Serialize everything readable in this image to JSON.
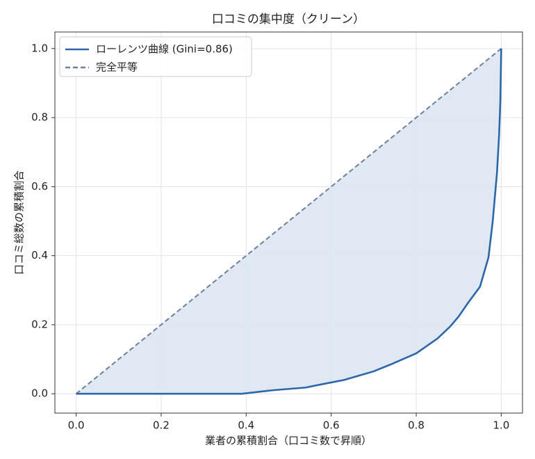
{
  "chart_data": {
    "type": "line",
    "title": "口コミの集中度（クリーン）",
    "xlabel": "業者の累積割合（口コミ数で昇順）",
    "ylabel": "口コミ総数の累積割合",
    "xlim": [
      -0.05,
      1.05
    ],
    "ylim": [
      -0.056,
      1.048
    ],
    "xticks": [
      {
        "value": 0,
        "label": "0.0"
      },
      0.2,
      0.4,
      0.6,
      0.8,
      {
        "value": 1,
        "label": "1.0"
      }
    ],
    "yticks": [
      {
        "value": 0,
        "label": "0.0"
      },
      0.2,
      0.4,
      0.6,
      0.8,
      {
        "value": 1,
        "label": "1.0"
      }
    ],
    "grid": true,
    "legend": "upper left",
    "fill_between": "#dce6f2",
    "series": [
      {
        "name": "ローレンツ曲線 (Gini=0.86)",
        "color": "#2c66a8",
        "dash": false,
        "x": [
          0,
          0.39,
          0.46,
          0.54,
          0.58,
          0.63,
          0.7,
          0.74,
          0.8,
          0.85,
          0.88,
          0.9,
          0.92,
          0.95,
          0.97,
          0.98,
          0.99,
          0.995,
          0.998,
          1.0
        ],
        "values": [
          0,
          0,
          0.01,
          0.018,
          0.028,
          0.04,
          0.065,
          0.085,
          0.117,
          0.16,
          0.195,
          0.224,
          0.26,
          0.31,
          0.395,
          0.5,
          0.64,
          0.75,
          0.85,
          1.0
        ]
      },
      {
        "name": "完全平等",
        "color": "#6d7f99",
        "dash": true,
        "x": [
          0,
          1.0
        ],
        "values": [
          0,
          1.0
        ]
      }
    ]
  }
}
